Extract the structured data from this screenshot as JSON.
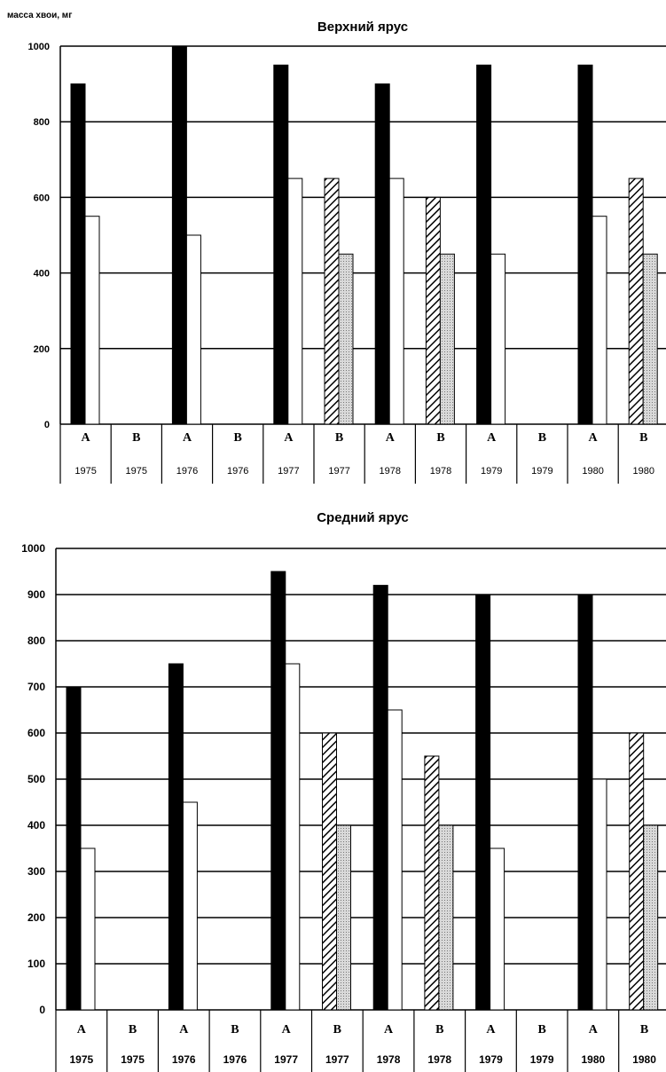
{
  "chart_data": [
    {
      "type": "bar",
      "title": "Верхний ярус",
      "ylabel": "масса хвои, мг",
      "ylim": [
        0,
        1000
      ],
      "yticks": [
        0,
        200,
        400,
        600,
        800,
        1000
      ],
      "categories": [
        {
          "letter": "А",
          "year": "1975"
        },
        {
          "letter": "В",
          "year": "1975"
        },
        {
          "letter": "А",
          "year": "1976"
        },
        {
          "letter": "В",
          "year": "1976"
        },
        {
          "letter": "А",
          "year": "1977"
        },
        {
          "letter": "В",
          "year": "1977"
        },
        {
          "letter": "А",
          "year": "1978"
        },
        {
          "letter": "В",
          "year": "1978"
        },
        {
          "letter": "А",
          "year": "1979"
        },
        {
          "letter": "В",
          "year": "1979"
        },
        {
          "letter": "А",
          "year": "1980"
        },
        {
          "letter": "В",
          "year": "1980"
        }
      ],
      "series": [
        {
          "style": "black",
          "values": [
            900,
            null,
            1000,
            null,
            950,
            null,
            900,
            null,
            950,
            null,
            950,
            null
          ]
        },
        {
          "style": "white",
          "values": [
            550,
            null,
            500,
            null,
            650,
            null,
            650,
            null,
            450,
            null,
            550,
            null
          ]
        },
        {
          "style": "hatched",
          "values": [
            null,
            null,
            null,
            null,
            null,
            650,
            null,
            600,
            null,
            null,
            null,
            650
          ]
        },
        {
          "style": "dotted",
          "values": [
            null,
            null,
            null,
            null,
            null,
            450,
            null,
            450,
            null,
            null,
            null,
            450
          ]
        }
      ],
      "grid": true,
      "colors": {
        "black": "#000000",
        "white": "#ffffff",
        "hatched": "#555555",
        "dotted": "#c8c8c8"
      }
    },
    {
      "type": "bar",
      "title": "Средний ярус",
      "ylim": [
        0,
        1000
      ],
      "yticks": [
        0,
        100,
        200,
        300,
        400,
        500,
        600,
        700,
        800,
        900,
        1000
      ],
      "categories": [
        {
          "letter": "А",
          "year": "1975"
        },
        {
          "letter": "В",
          "year": "1975"
        },
        {
          "letter": "А",
          "year": "1976"
        },
        {
          "letter": "В",
          "year": "1976"
        },
        {
          "letter": "А",
          "year": "1977"
        },
        {
          "letter": "В",
          "year": "1977"
        },
        {
          "letter": "А",
          "year": "1978"
        },
        {
          "letter": "В",
          "year": "1978"
        },
        {
          "letter": "А",
          "year": "1979"
        },
        {
          "letter": "В",
          "year": "1979"
        },
        {
          "letter": "А",
          "year": "1980"
        },
        {
          "letter": "В",
          "year": "1980"
        }
      ],
      "series": [
        {
          "style": "black",
          "values": [
            700,
            null,
            750,
            null,
            950,
            null,
            920,
            null,
            900,
            null,
            900,
            null
          ]
        },
        {
          "style": "white",
          "values": [
            350,
            null,
            450,
            null,
            750,
            null,
            650,
            null,
            350,
            null,
            500,
            null
          ]
        },
        {
          "style": "hatched",
          "values": [
            null,
            null,
            null,
            null,
            null,
            600,
            null,
            550,
            null,
            null,
            null,
            600
          ]
        },
        {
          "style": "dotted",
          "values": [
            null,
            null,
            null,
            null,
            null,
            400,
            null,
            400,
            null,
            null,
            null,
            400
          ]
        }
      ],
      "grid": true,
      "colors": {
        "black": "#000000",
        "white": "#ffffff",
        "hatched": "#555555",
        "dotted": "#c8c8c8"
      }
    }
  ]
}
